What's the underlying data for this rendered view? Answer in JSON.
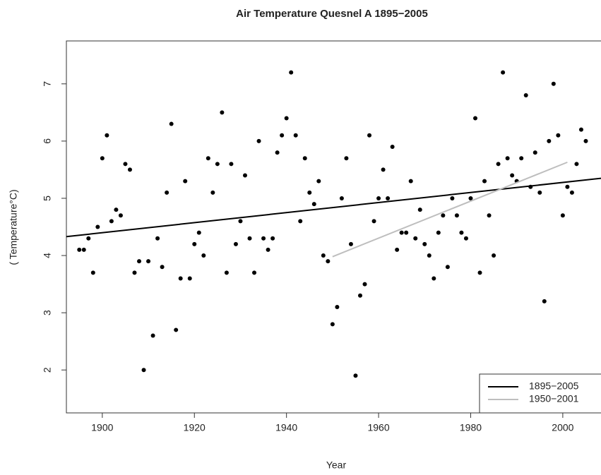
{
  "chart_data": {
    "type": "scatter",
    "title": "Air Temperature Quesnel A 1895−2005",
    "x_label": "Year",
    "y_label": "( Temperature°C)",
    "xlim": [
      1892.2,
      2008.3
    ],
    "ylim": [
      1.25,
      7.75
    ],
    "xticks": [
      1900,
      1920,
      1940,
      1960,
      1980,
      2000
    ],
    "yticks": [
      2,
      3,
      4,
      5,
      6,
      7
    ],
    "legend": "bottomright",
    "points": {
      "color": "#000000",
      "x": [
        1895,
        1896,
        1897,
        1898,
        1899,
        1900,
        1901,
        1902,
        1903,
        1904,
        1905,
        1906,
        1907,
        1908,
        1909,
        1910,
        1911,
        1912,
        1913,
        1914,
        1915,
        1916,
        1917,
        1918,
        1919,
        1920,
        1921,
        1922,
        1923,
        1924,
        1925,
        1926,
        1927,
        1928,
        1929,
        1930,
        1931,
        1932,
        1933,
        1934,
        1935,
        1936,
        1937,
        1938,
        1939,
        1940,
        1941,
        1942,
        1943,
        1944,
        1945,
        1946,
        1947,
        1948,
        1949,
        1950,
        1951,
        1952,
        1953,
        1954,
        1955,
        1956,
        1957,
        1958,
        1959,
        1960,
        1961,
        1962,
        1963,
        1964,
        1965,
        1966,
        1967,
        1968,
        1969,
        1970,
        1971,
        1972,
        1973,
        1974,
        1975,
        1976,
        1977,
        1978,
        1979,
        1980,
        1981,
        1982,
        1983,
        1984,
        1985,
        1986,
        1987,
        1988,
        1989,
        1990,
        1991,
        1992,
        1993,
        1994,
        1995,
        1996,
        1997,
        1998,
        1999,
        2000,
        2001,
        2002,
        2003,
        2004,
        2005
      ],
      "values": [
        4.1,
        4.1,
        4.3,
        3.7,
        4.5,
        5.7,
        6.1,
        4.6,
        4.8,
        4.7,
        5.6,
        5.5,
        3.7,
        3.9,
        2.0,
        3.9,
        2.6,
        4.3,
        3.8,
        5.1,
        6.3,
        2.7,
        3.6,
        5.3,
        3.6,
        4.2,
        4.4,
        4.0,
        5.7,
        5.1,
        5.6,
        6.5,
        3.7,
        5.6,
        4.2,
        4.6,
        5.4,
        4.3,
        3.7,
        6.0,
        4.3,
        4.1,
        4.3,
        5.8,
        6.1,
        6.4,
        7.2,
        6.1,
        4.6,
        5.7,
        5.1,
        4.9,
        5.3,
        4.0,
        3.9,
        2.8,
        3.1,
        5.0,
        5.7,
        4.2,
        1.9,
        3.3,
        3.5,
        6.1,
        4.6,
        5.0,
        5.5,
        5.0,
        5.9,
        4.1,
        4.4,
        4.4,
        5.3,
        4.3,
        4.8,
        4.2,
        4.0,
        3.6,
        4.4,
        4.7,
        3.8,
        5.0,
        4.7,
        4.4,
        4.3,
        5.0,
        6.4,
        3.7,
        5.3,
        4.7,
        4.0,
        5.6,
        7.2,
        5.7,
        5.4,
        5.3,
        5.7,
        6.8,
        5.2,
        5.8,
        5.1,
        3.2,
        6.0,
        7.0,
        6.1,
        4.7,
        5.2,
        5.1,
        5.6,
        6.2,
        6.0
      ]
    },
    "series": [
      {
        "name": "1895−2005",
        "color": "#000000",
        "x": [
          1892.2,
          2008.3
        ],
        "values": [
          4.33,
          5.35
        ]
      },
      {
        "name": "1950−2001",
        "color": "#bebebe",
        "x": [
          1950,
          2001
        ],
        "values": [
          3.98,
          5.63
        ]
      }
    ]
  }
}
